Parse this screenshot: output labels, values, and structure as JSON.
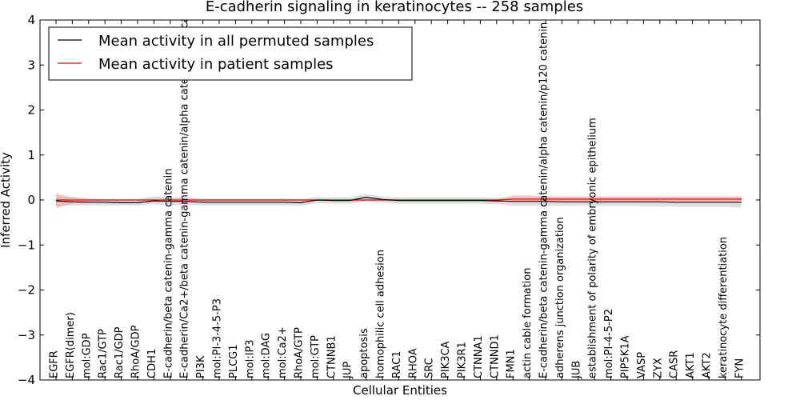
{
  "chart_data": {
    "type": "line",
    "title": "E-cadherin signaling in keratinocytes -- 258 samples",
    "xlabel": "Cellular Entities",
    "ylabel": "Inferred Activity",
    "ylim": [
      -4,
      4
    ],
    "yticks": [
      -4,
      -3,
      -2,
      -1,
      0,
      1,
      2,
      3,
      4
    ],
    "grid": false,
    "legend_placement": "top-left",
    "categories": [
      "EGFR",
      "EGFR(dimer)",
      "mol:GDP",
      "Rac1/GTP",
      "Rac1/GDP",
      "RhoA/GDP",
      "CDH1",
      "E-cadherin/beta catenin-gamma catenin",
      "E-cadherin/Ca2+/beta catenin-gamma catenin/alpha catenin/p120 catenin",
      "PI3K",
      "mol:PI-3-4-5-P3",
      "PLCG1",
      "mol:IP3",
      "mol:DAG",
      "mol:Ca2+",
      "RhoA/GTP",
      "mol:GTP",
      "CTNNB1",
      "JUP",
      "apoptosis",
      "homophilic cell adhesion",
      "RAC1",
      "RHOA",
      "SRC",
      "PIK3CA",
      "PIK3R1",
      "CTNNA1",
      "CTNND1",
      "FMN1",
      "actin cable formation",
      "E-cadherin/beta catenin-gamma catenin/alpha catenin/p120 catenin",
      "adherens junction organization",
      "JUB",
      "establishment of polarity of embryonic epithelium",
      "mol:PI-4-5-P2",
      "PIP5K1A",
      "VASP",
      "ZYX",
      "CASR",
      "AKT1",
      "AKT2",
      "keratinocyte differentiation",
      "FYN"
    ],
    "series": [
      {
        "name": "Mean activity in all permuted samples",
        "color": "#000000",
        "band_color": "#c8c8c8",
        "values": [
          -0.02,
          -0.04,
          -0.05,
          -0.05,
          -0.06,
          -0.06,
          -0.02,
          -0.03,
          -0.03,
          -0.05,
          -0.05,
          -0.05,
          -0.05,
          -0.05,
          -0.05,
          -0.06,
          0.0,
          -0.01,
          -0.01,
          0.06,
          0.01,
          -0.01,
          -0.01,
          -0.01,
          -0.01,
          -0.01,
          -0.01,
          -0.02,
          -0.03,
          -0.03,
          -0.03,
          -0.04,
          -0.04,
          -0.04,
          -0.04,
          -0.04,
          -0.04,
          -0.04,
          -0.05,
          -0.05,
          -0.05,
          -0.05,
          -0.05
        ],
        "lower": [
          -0.13,
          -0.12,
          -0.12,
          -0.12,
          -0.12,
          -0.12,
          -0.1,
          -0.11,
          -0.11,
          -0.12,
          -0.12,
          -0.12,
          -0.12,
          -0.12,
          -0.12,
          -0.13,
          -0.07,
          -0.08,
          -0.08,
          -0.02,
          -0.06,
          -0.08,
          -0.08,
          -0.08,
          -0.08,
          -0.08,
          -0.08,
          -0.09,
          -0.13,
          -0.13,
          -0.13,
          -0.13,
          -0.13,
          -0.13,
          -0.13,
          -0.13,
          -0.14,
          -0.14,
          -0.15,
          -0.15,
          -0.15,
          -0.15,
          -0.17
        ],
        "upper": [
          0.08,
          0.05,
          0.02,
          0.02,
          0.02,
          0.02,
          0.08,
          0.07,
          0.06,
          0.03,
          0.03,
          0.03,
          0.03,
          0.03,
          0.03,
          0.02,
          0.07,
          0.06,
          0.06,
          0.13,
          0.08,
          0.06,
          0.06,
          0.06,
          0.06,
          0.06,
          0.06,
          0.05,
          0.05,
          0.05,
          0.05,
          0.04,
          0.04,
          0.04,
          0.04,
          0.04,
          0.04,
          0.04,
          0.04,
          0.04,
          0.04,
          0.04,
          0.04
        ]
      },
      {
        "name": "Mean activity in patient samples",
        "color": "#ff0000",
        "band_color": "#f4a0a0",
        "values": [
          0.0,
          0.0,
          0.0,
          0.0,
          0.0,
          0.0,
          0.0,
          0.0,
          0.0,
          0.0,
          0.0,
          0.0,
          0.0,
          0.0,
          0.0,
          0.0,
          0.0,
          0.0,
          0.0,
          0.0,
          0.0,
          0.0,
          0.0,
          0.0,
          0.0,
          0.0,
          0.0,
          0.0,
          0.02,
          0.02,
          0.02,
          0.02,
          0.02,
          0.02,
          0.02,
          0.02,
          0.02,
          0.02,
          0.02,
          0.02,
          0.02,
          0.02,
          0.02
        ],
        "lower": [
          -0.18,
          -0.08,
          -0.03,
          -0.02,
          -0.02,
          -0.02,
          -0.02,
          -0.02,
          -0.02,
          -0.02,
          -0.02,
          -0.02,
          -0.02,
          -0.02,
          -0.02,
          -0.02,
          -0.02,
          -0.02,
          -0.02,
          -0.02,
          -0.02,
          -0.02,
          -0.02,
          -0.02,
          -0.02,
          -0.02,
          -0.02,
          -0.02,
          -0.02,
          -0.02,
          -0.02,
          -0.02,
          -0.02,
          -0.02,
          -0.02,
          -0.02,
          -0.02,
          -0.02,
          -0.02,
          -0.02,
          -0.02,
          -0.02,
          -0.02
        ],
        "upper": [
          0.14,
          0.07,
          0.03,
          0.02,
          0.02,
          0.02,
          0.03,
          0.03,
          0.03,
          0.02,
          0.02,
          0.02,
          0.02,
          0.02,
          0.02,
          0.02,
          0.02,
          0.02,
          0.02,
          0.02,
          0.02,
          0.02,
          0.02,
          0.02,
          0.02,
          0.02,
          0.02,
          0.02,
          0.1,
          0.1,
          0.08,
          0.08,
          0.08,
          0.08,
          0.08,
          0.08,
          0.08,
          0.08,
          0.08,
          0.08,
          0.08,
          0.08,
          0.08
        ]
      }
    ]
  }
}
